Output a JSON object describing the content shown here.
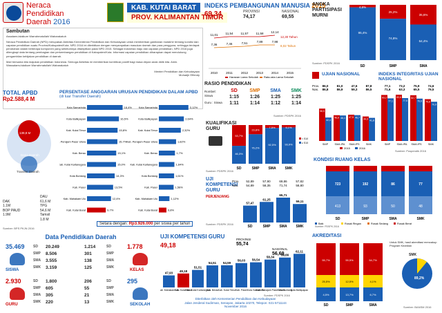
{
  "header": {
    "title_l1": "Neraca",
    "title_l2": "Pendidikan",
    "title_l3": "Daerah",
    "year": "2016",
    "kab": "KAB. KUTAI BARAT",
    "prov": "PROV. KALIMANTAN TIMUR"
  },
  "sambutan": {
    "title": "Sambutan",
    "greeting": "Assalamu'alaikum Warrahmatullahi Wabarakatuh",
    "body": "Neraca Pendidikan Daerah (NPD) merupakan Aktivitas Kementerian Pendidikan dan Kebudayaan untuk memberikan gambaran mutakhir tentang kondisi dan capaian pendidikan suatu Provinsi/Kabupaten/Kota. NPD 2016 ini diterbitkan dengan menyampaikan masukan daerah dan para pengguna, sehingga terdapat perubahan dalam beberapa komponen yang sebelumnya ditampilkan pada NPD 2015. Sebagai indonesia maju dan capaian pendidikan, NPD 2016 juga dilengkapi data tentang pembagian dan perkembangan pendidikan di Kabupaten/Kota. Informasi capaian pendidikan diharapkan dapat mendukung pengambilan kebijakan pendidikan di daerah.",
    "body2": "Mari bersama kita majukan pendidikan Indonesia. Semoga Aktivitas ini memberikan kontribusi positif bagi masa depan anak didik kita. Amin.",
    "closing": "Wassalamu'alaikum Warrahmatullahi Wabarakatuh",
    "sign1": "Menteri Pendidikan dan Kebudayaan",
    "sign2": "Muhadjir Effendy"
  },
  "ipm": {
    "title": "INDEKS PEMBANGUNAN MANUSIA",
    "year": "2015",
    "kab_value": "69,34",
    "prov_label": "PROVINSI",
    "prov_value": "74,17",
    "nas_label": "NASIONAL",
    "nas_value": "69,55",
    "years": [
      "2010",
      "2011",
      "2012",
      "2013",
      "2014",
      "2015"
    ],
    "harapan": [
      "11,01",
      "11,54",
      "11,57",
      "11,58",
      "12,14",
      ""
    ],
    "rata": [
      "7,36",
      "7,46",
      "7,51",
      "7,89",
      "7,98",
      ""
    ],
    "label_hls": "12,30 Tahun",
    "label_rls": "8,02 Tahun",
    "legend1": "Harapan Lama Sekolah",
    "legend2": "Rata-rata Lama Sekolah"
  },
  "apm": {
    "title_l1": "ANGKA",
    "title_l2": "PARTISIPASI",
    "title_l3": "MURNI",
    "source": "Sumber: PDSPK 2016",
    "categories": [
      "SD",
      "SMP",
      "SMA"
    ],
    "top_vals": [
      "4,6%",
      "25,2%",
      "35,6%"
    ],
    "bottom_vals": [
      "95,4%",
      "74,8%",
      "64,4%"
    ]
  },
  "rasio": {
    "title": "RASIO PENDIDIKAN",
    "cols": [
      "SD",
      "SMP",
      "SMA",
      "SMK"
    ],
    "row1_label": "Rombel: Siswa",
    "row1": [
      "1:15",
      "1:26",
      "1:25",
      "1:25"
    ],
    "row2_label": "Guru : Siswa",
    "row2": [
      "1:11",
      "1:14",
      "1:12",
      "1:14"
    ],
    "source": "Sumber: PDSPK 2016"
  },
  "ujian": {
    "title": "UJIAN NASIONAL",
    "title2": "INDEKS INTEGRITAS UJIAN NASIONAL",
    "prov_label": "Prov.",
    "nas_label": "Nas.",
    "prov_vals": [
      "86,0",
      "81,0",
      "47,6",
      "87,8"
    ],
    "nas_vals": [
      "86,8",
      "86,9",
      "59,3",
      "86,5"
    ],
    "prov_ii": [
      "77,1",
      "73,2",
      "75,9",
      "74,6"
    ],
    "nas_ii": [
      "71,6",
      "63,3",
      "65,5",
      "79,5"
    ],
    "cats": [
      "SMP",
      "SMA IPA",
      "SMA IPS",
      "SMK"
    ],
    "v2015": [
      "58,5",
      "46,6",
      "47,5",
      "44,3"
    ],
    "v2016": [
      "42,4",
      "46,1",
      "46,7",
      "41,8"
    ],
    "ii2015": [
      "83,2",
      "83,6",
      "82,7",
      "75,6"
    ],
    "ii2016": [
      "77,1",
      "77,5",
      "76,6",
      "70,9"
    ],
    "legend1": "2015",
    "legend2": "2016",
    "source": "Sumber: Puspendik 2016"
  },
  "total": {
    "title": "TOTAL APBD",
    "value": "Rp2.588,4 M",
    "dana_label": "Dana Daerah",
    "dana_value": "139,8 M",
    "transfer_label": "Transfer Daerah",
    "transfer_value": "1.511,8 M",
    "dau_label": "DAU",
    "dau_val": "61,6 M",
    "dak_label": "DAK",
    "dak_val": "1.1M",
    "tpg_label": "TPG",
    "tpg_val": "54,6 M",
    "bop_label": "BOP PAUD",
    "bop_val": "1.9M",
    "tamsil_label": "Tamsil",
    "tamsil_val": "1.8 M",
    "source": "Sumber: BPS PKJN 2016"
  },
  "persen": {
    "title": "PERSENTASE ANGGARAN URUSAN PENDIDIKAN DALAM APBD",
    "subtitle": "(di luar Transfer Daerah)",
    "left": [
      {
        "name": "Kota Samarinda",
        "val": "18,4%"
      },
      {
        "name": "Kota Balikpapan",
        "val": "16,5%"
      },
      {
        "name": "Kab. Kutai Timur",
        "val": "15,8%"
      },
      {
        "name": "Kab. Penajam Paser Utara",
        "val": "15,7%"
      },
      {
        "name": "Kab. Berau",
        "val": "15,1%"
      },
      {
        "name": "Kab. Kutai Kartanegara",
        "val": "15,0%"
      },
      {
        "name": "Kota Bontang",
        "val": "14,3%"
      },
      {
        "name": "Kab. Paser",
        "val": "13,5%"
      },
      {
        "name": "Kab. Mahakam Ulu",
        "val": "12,4%"
      },
      {
        "name": "Kab. Kutai Barat",
        "val": "9,7%"
      }
    ],
    "right": [
      {
        "name": "Kota Samarinda",
        "val": "3,12%"
      },
      {
        "name": "Kota Balikpapan",
        "val": "2,64%"
      },
      {
        "name": "Kab. Kutai Timur",
        "val": "2,32%"
      },
      {
        "name": "Kab. Penajam Paser Utara",
        "val": "1,82%"
      },
      {
        "name": "Kab. Berau",
        "val": "1,7%"
      },
      {
        "name": "Kab. Kutai Kartanegara",
        "val": "1,64%"
      },
      {
        "name": "Kota Bontang",
        "val": "1,61%"
      },
      {
        "name": "Kab. Paser",
        "val": "1,56%"
      },
      {
        "name": "Kab. Mahakam Ulu",
        "val": "1,12%"
      },
      {
        "name": "Kab. Kutai Barat",
        "val": "0,8%"
      }
    ],
    "foot_label": "Setara dengan:",
    "foot_value": "Rp3.926.000",
    "foot_suffix": "per siswa per tahun"
  },
  "kual": {
    "title_l1": "KUALIFIKASI",
    "title_l2": "GURU",
    "cats": [
      "SD",
      "SMP",
      "SMA",
      "SMK"
    ],
    "top": [
      "53,7%",
      "23,8%",
      "7,5%",
      "6,1%"
    ],
    "bottom": [
      "46,3%",
      "76,2%",
      "92,5%",
      "93,9%"
    ],
    "legend1": "< S1/D4",
    "legend2": "≥ S1/D4",
    "source": "Sumber: PDSPK 2016"
  },
  "ukg": {
    "title_l1": "UJI",
    "title_l2": "KOMPETENSI",
    "title_l3": "GURU",
    "sub": "PERJENJANG",
    "prov_label": "Prov.",
    "nas_label": "Nas.",
    "prov_vals": [
      "52,89",
      "57,90",
      "69,86",
      "57,82"
    ],
    "nas_vals": [
      "54,89",
      "58,35",
      "71,74",
      "58,80"
    ],
    "cats": [
      "SD",
      "SMP",
      "SMA",
      "SMK"
    ],
    "vals": [
      57.47,
      61.25,
      65.71,
      59.11
    ],
    "labels": [
      "57,47",
      "61,25",
      "65,71",
      "59,11"
    ],
    "source": "Sumber: PDSPK 2016"
  },
  "kondisi": {
    "title": "KONDISI RUANG KELAS",
    "cats": [
      "SD",
      "SMP",
      "SMA",
      "SMK"
    ],
    "baik": [
      "723",
      "192",
      "86",
      "77"
    ],
    "rusak": [
      "413",
      "93",
      "50",
      "48"
    ],
    "legend_items": [
      "Baik",
      "Rusak Ringan",
      "Rusak Sedang",
      "Rusak Berat"
    ],
    "source": "Sumber: PDSPK 2016"
  },
  "dpd": {
    "title": "Data Pendidikan Daerah",
    "siswa_total": "35.469",
    "siswa_label": "SISWA",
    "siswa": [
      {
        "lvl": "SD",
        "v": "20.249"
      },
      {
        "lvl": "SMP",
        "v": "8.506"
      },
      {
        "lvl": "SMA",
        "v": "3.555"
      },
      {
        "lvl": "SMK",
        "v": "3.159"
      }
    ],
    "kelas_total": "1.778",
    "kelas_label": "KELAS",
    "kelas": [
      {
        "lvl": "SD",
        "v": "1.214"
      },
      {
        "lvl": "SMP",
        "v": "301"
      },
      {
        "lvl": "SMA",
        "v": "138"
      },
      {
        "lvl": "SMK",
        "v": "125"
      }
    ],
    "guru_total": "2.930",
    "guru_label": "GURU",
    "guru": [
      {
        "lvl": "SD",
        "v": "1.800"
      },
      {
        "lvl": "SMP",
        "v": "605"
      },
      {
        "lvl": "SMA",
        "v": "305"
      },
      {
        "lvl": "SMK",
        "v": "220"
      }
    ],
    "sekolah_total": "295",
    "sekolah_label": "SEKOLAH",
    "sekolah": [
      {
        "lvl": "SD",
        "v": "206"
      },
      {
        "lvl": "SMP",
        "v": "55"
      },
      {
        "lvl": "SMA",
        "v": "21"
      },
      {
        "lvl": "SMK",
        "v": "13"
      }
    ]
  },
  "ukg2": {
    "title": "UJI KOMPETENSI GURU",
    "kab_value": "49,18",
    "prov_label": "PROVINSI",
    "prov_value": "55,74",
    "nas_label": "NASIONAL",
    "nas_value": "56,69",
    "bars": [
      {
        "name": "Kab. Mahakam Ulu",
        "v": 47.93,
        "l": "47,93"
      },
      {
        "name": "Kab. Kutai Barat",
        "v": 49.18,
        "l": "49,18",
        "hl": true
      },
      {
        "name": "Kab. Kutai Kartanegara",
        "v": 51.51,
        "l": "51,51"
      },
      {
        "name": "Kab. Berau",
        "v": 54.51,
        "l": "54,51"
      },
      {
        "name": "Kab. Kutai Timur",
        "v": 54.59,
        "l": "54,59"
      },
      {
        "name": "Kab. Paser",
        "v": 56.03,
        "l": "56,03"
      },
      {
        "name": "Kota Samarinda",
        "v": 56.54,
        "l": "56,54"
      },
      {
        "name": "Kab. Penajam Paser Utara",
        "v": 58.34,
        "l": "58,34"
      },
      {
        "name": "Kota Bontang",
        "v": 59.66,
        "l": "59,66"
      },
      {
        "name": "Kota Balikpapan",
        "v": 62.11,
        "l": "62,11"
      }
    ],
    "source": "Sumber: PDSPK 2016",
    "foot1": "Diterbitkan oleh Kementerian Pendidikan dan Kebudayaan",
    "foot2": "Jalan Jenderal Sudirman, Senayan, Jakarta 10270, Telepon: 021-5711144",
    "foot3": "November 2016"
  },
  "akred": {
    "title": "AKREDITASI",
    "note": "Untuk SMK, hasil akreditasi mencakup Program Keahlian",
    "smk_label": "SMK",
    "cats": [
      "SD",
      "SMP",
      "SMA"
    ],
    "a": [
      "4,5%",
      "13,7%",
      "6,7%"
    ],
    "b": [
      "25,5%",
      "12,5%",
      "4,1%"
    ],
    "c": [
      "55,7%",
      "59,5%",
      "54,7%"
    ],
    "smk_big": "89,2%",
    "source": "Sumber: BANSM 2016"
  }
}
